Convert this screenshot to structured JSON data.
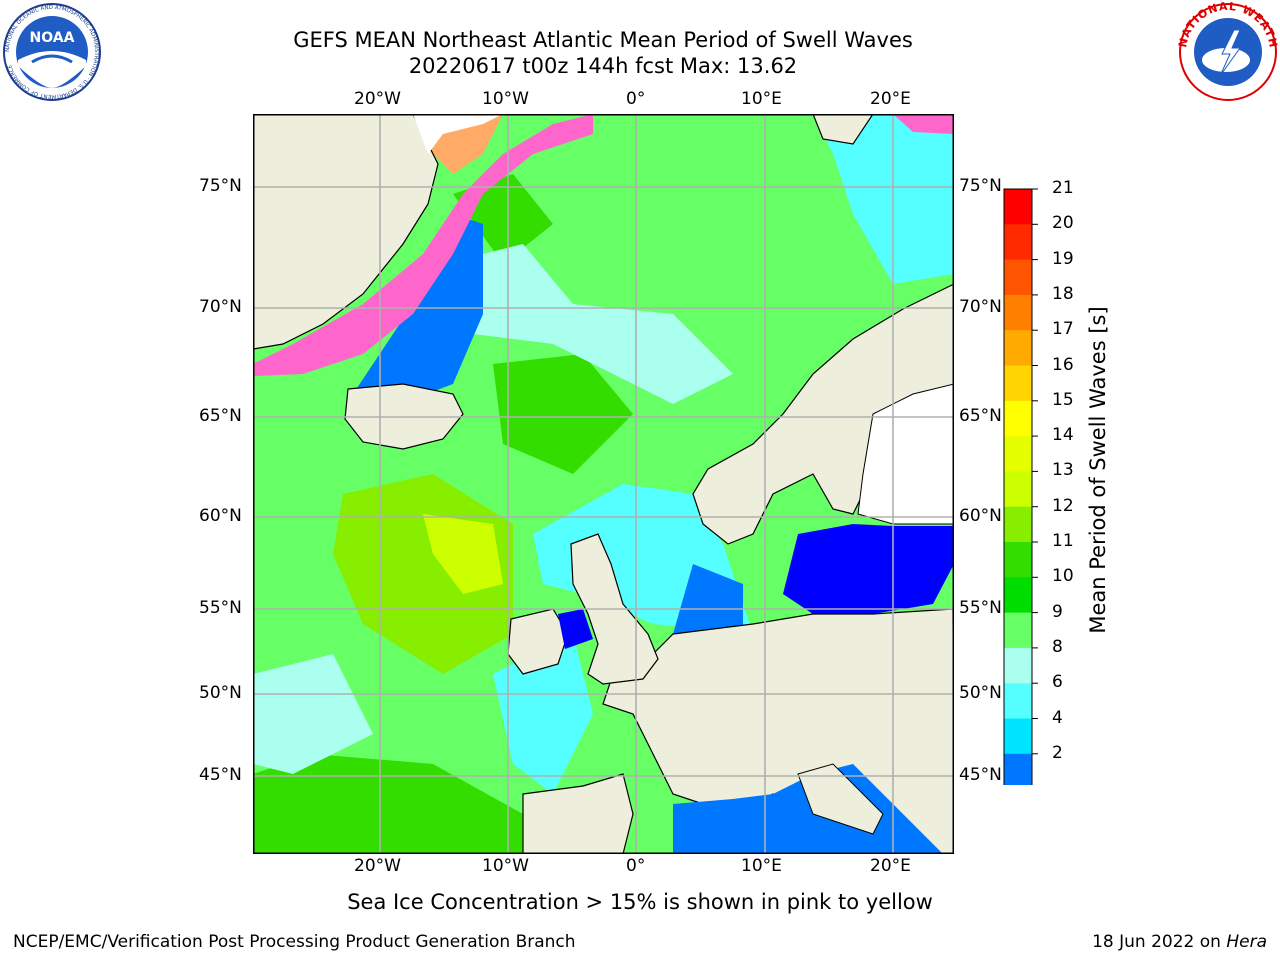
{
  "header": {
    "title_line1": "GEFS MEAN Northeast Atlantic Mean Period of Swell Waves",
    "title_line2": "20220617 t00z 144h fcst   Max: 13.62"
  },
  "logos": {
    "left": "NOAA",
    "left_ring": "NATIONAL OCEANIC AND ATMOSPHERIC ADMINISTRATION · U.S. DEPARTMENT OF COMMERCE",
    "right_ring": "NATIONAL WEATHER SERVICE"
  },
  "map": {
    "lon_labels": [
      "20°W",
      "10°W",
      "0°",
      "10°E",
      "20°E"
    ],
    "lat_labels": [
      "75°N",
      "70°N",
      "65°N",
      "60°N",
      "55°N",
      "50°N",
      "45°N"
    ],
    "grid": true,
    "ocean_color": "#66ff66",
    "land_color": "#eeeedd"
  },
  "colorbar": {
    "label": "Mean Period of Swell Waves [s]",
    "ticks": [
      "21",
      "20",
      "19",
      "18",
      "17",
      "16",
      "15",
      "14",
      "13",
      "12",
      "11",
      "10",
      "9",
      "8",
      "6",
      "4",
      "2"
    ],
    "colors": [
      "#ff0000",
      "#ff2a00",
      "#ff5500",
      "#ff7f00",
      "#ffaa00",
      "#ffd400",
      "#ffff00",
      "#e5ff00",
      "#ccff00",
      "#88ee00",
      "#33dd00",
      "#00dd00",
      "#66ff66",
      "#aaffee",
      "#55ffff",
      "#00e5ff",
      "#0077ff",
      "#0000ff"
    ]
  },
  "note": "Sea Ice Concentration > 15% is shown in pink to yellow",
  "footer": {
    "left": "NCEP/EMC/Verification Post Processing Product Generation Branch",
    "right_date": "18 Jun 2022 on ",
    "right_host": "Hera"
  }
}
